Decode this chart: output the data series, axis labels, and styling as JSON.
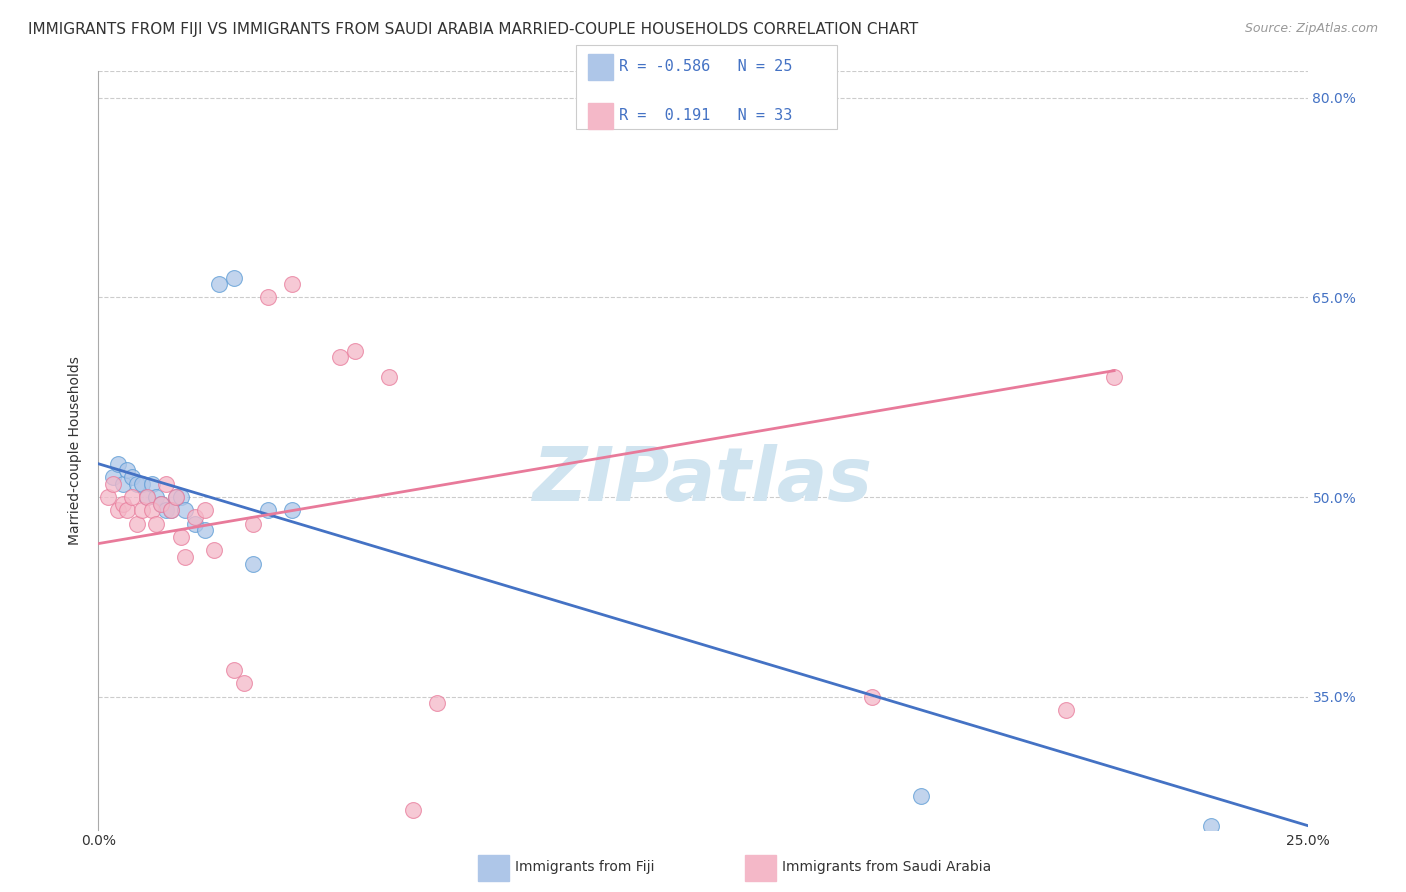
{
  "title": "IMMIGRANTS FROM FIJI VS IMMIGRANTS FROM SAUDI ARABIA MARRIED-COUPLE HOUSEHOLDS CORRELATION CHART",
  "source": "Source: ZipAtlas.com",
  "ylabel": "Married-couple Households",
  "xlim": [
    0.0,
    0.25
  ],
  "ylim": [
    0.25,
    0.82
  ],
  "xticks": [
    0.0,
    0.025,
    0.05,
    0.075,
    0.1,
    0.125,
    0.15,
    0.175,
    0.2,
    0.225,
    0.25
  ],
  "yticks_right": [
    0.35,
    0.5,
    0.65,
    0.8
  ],
  "ytick_labels_right": [
    "35.0%",
    "50.0%",
    "65.0%",
    "80.0%"
  ],
  "fiji_color": "#aec6e8",
  "fiji_edge_color": "#5b9bd5",
  "saudi_color": "#f4b8c8",
  "saudi_edge_color": "#e87a9a",
  "fiji_R": -0.586,
  "fiji_N": 25,
  "saudi_R": 0.191,
  "saudi_N": 33,
  "line_fiji_color": "#4472c4",
  "line_saudi_color": "#e87a9a",
  "watermark": "ZIPatlas",
  "watermark_color": "#d0e4f0",
  "title_fontsize": 11,
  "axis_label_fontsize": 10,
  "tick_fontsize": 10,
  "legend_fontsize": 11,
  "fiji_x": [
    0.003,
    0.004,
    0.005,
    0.006,
    0.007,
    0.008,
    0.009,
    0.01,
    0.011,
    0.012,
    0.013,
    0.014,
    0.015,
    0.016,
    0.017,
    0.018,
    0.02,
    0.022,
    0.025,
    0.028,
    0.032,
    0.035,
    0.04,
    0.17,
    0.23
  ],
  "fiji_y": [
    0.515,
    0.525,
    0.51,
    0.52,
    0.515,
    0.51,
    0.51,
    0.5,
    0.51,
    0.5,
    0.495,
    0.49,
    0.49,
    0.5,
    0.5,
    0.49,
    0.48,
    0.475,
    0.66,
    0.665,
    0.45,
    0.49,
    0.49,
    0.275,
    0.253
  ],
  "saudi_x": [
    0.002,
    0.003,
    0.004,
    0.005,
    0.006,
    0.007,
    0.008,
    0.009,
    0.01,
    0.011,
    0.012,
    0.013,
    0.014,
    0.015,
    0.016,
    0.017,
    0.018,
    0.02,
    0.022,
    0.024,
    0.028,
    0.03,
    0.032,
    0.035,
    0.04,
    0.05,
    0.053,
    0.06,
    0.065,
    0.07,
    0.16,
    0.2,
    0.21
  ],
  "saudi_y": [
    0.5,
    0.51,
    0.49,
    0.495,
    0.49,
    0.5,
    0.48,
    0.49,
    0.5,
    0.49,
    0.48,
    0.495,
    0.51,
    0.49,
    0.5,
    0.47,
    0.455,
    0.485,
    0.49,
    0.46,
    0.37,
    0.36,
    0.48,
    0.65,
    0.66,
    0.605,
    0.61,
    0.59,
    0.265,
    0.345,
    0.35,
    0.34,
    0.59
  ],
  "fiji_line_x0": 0.0,
  "fiji_line_y0": 0.525,
  "fiji_line_x1": 0.25,
  "fiji_line_y1": 0.253,
  "saudi_line_x0": 0.0,
  "saudi_line_y0": 0.465,
  "saudi_line_x1": 0.21,
  "saudi_line_y1": 0.595
}
